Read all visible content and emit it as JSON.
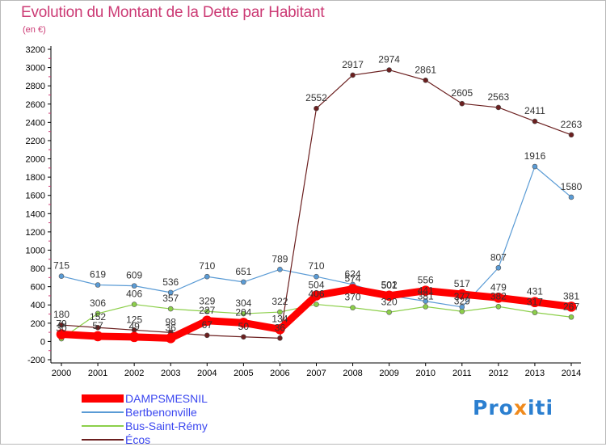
{
  "header": {
    "title": "Evolution du Montant de la Dette par Habitant",
    "subtitle": "(en €)"
  },
  "logo": {
    "part1": "Pro",
    "part2": "x",
    "part3": "iti"
  },
  "chart_data": {
    "type": "line",
    "title": "Evolution du Montant de la Dette par Habitant",
    "ylabel": "(en €)",
    "x": [
      "2000",
      "2001",
      "2002",
      "2003",
      "2004",
      "2005",
      "2006",
      "2007",
      "2008",
      "2009",
      "2010",
      "2011",
      "2012",
      "2013",
      "2014"
    ],
    "yticks": [
      -200,
      0,
      200,
      400,
      600,
      800,
      1000,
      1200,
      1400,
      1600,
      1800,
      2000,
      2200,
      2400,
      2600,
      2800,
      3000,
      3200
    ],
    "ylim": [
      -200,
      3200
    ],
    "grid": false,
    "legend_position": "bottom-left",
    "series": [
      {
        "name": "DAMPSMESNIL",
        "color": "#ff0000",
        "width": 9,
        "values": [
          79,
          57,
          49,
          36,
          227,
          204,
          134,
          504,
          574,
          501,
          556,
          517,
          479,
          431,
          381
        ],
        "labels": [
          "79",
          "57",
          "49",
          "36",
          "227",
          "204",
          "134",
          "504",
          "574",
          "501",
          "556",
          "517",
          "479",
          "431",
          "381"
        ]
      },
      {
        "name": "Bertbenonville",
        "color": "#5a9bd5",
        "width": 1.2,
        "values": [
          715,
          619,
          609,
          536,
          710,
          651,
          789,
          710,
          624,
          502,
          441,
          377,
          807,
          1916,
          1580
        ],
        "labels": [
          "715",
          "619",
          "609",
          "536",
          "710",
          "651",
          "789",
          "710",
          "624",
          "502",
          "441",
          "377",
          "807",
          "1916",
          "1580"
        ]
      },
      {
        "name": "Bus-Saint-Rémy",
        "color": "#8ccf4a",
        "width": 1.2,
        "values": [
          30,
          306,
          406,
          357,
          329,
          304,
          322,
          406,
          370,
          320,
          381,
          329,
          382,
          317,
          267
        ],
        "labels": [
          "30",
          "306",
          "406",
          "357",
          "329",
          "304",
          "322",
          "406",
          "370",
          "320",
          "381",
          "329",
          "382",
          "317",
          "267"
        ]
      },
      {
        "name": "Écos",
        "color": "#6b1f1f",
        "width": 1.2,
        "values": [
          180,
          152,
          125,
          98,
          67,
          50,
          36,
          2552,
          2917,
          2974,
          2861,
          2605,
          2563,
          2411,
          2263
        ],
        "labels": [
          "180",
          "152",
          "125",
          "98",
          "67",
          "50",
          "36",
          "2552",
          "2917",
          "2974",
          "2861",
          "2605",
          "2563",
          "2411",
          "2263"
        ]
      }
    ]
  }
}
